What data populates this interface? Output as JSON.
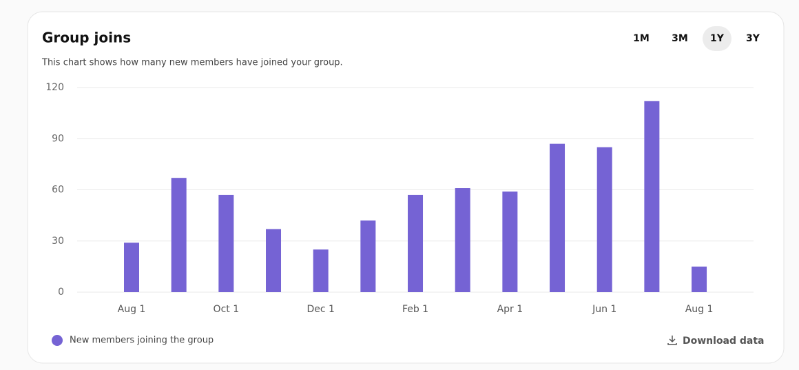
{
  "chart_data": {
    "type": "bar",
    "title": "Group joins",
    "subtitle": "This chart shows how many new members have joined your group.",
    "categories": [
      "Aug 1",
      null,
      "Oct 1",
      null,
      "Dec 1",
      null,
      "Feb 1",
      null,
      "Apr 1",
      null,
      "Jun 1",
      null,
      "Aug 1"
    ],
    "series": [
      {
        "name": "New members joining the group",
        "color": "#7563d4",
        "values": [
          29,
          67,
          57,
          37,
          25,
          42,
          57,
          61,
          59,
          87,
          85,
          112,
          15
        ]
      }
    ],
    "ylim": [
      0,
      120
    ],
    "yticks": [
      0,
      30,
      60,
      90,
      120
    ],
    "grid": true
  },
  "range_buttons": [
    "1M",
    "3M",
    "1Y",
    "3Y"
  ],
  "active_range": 2,
  "download": "Download data"
}
